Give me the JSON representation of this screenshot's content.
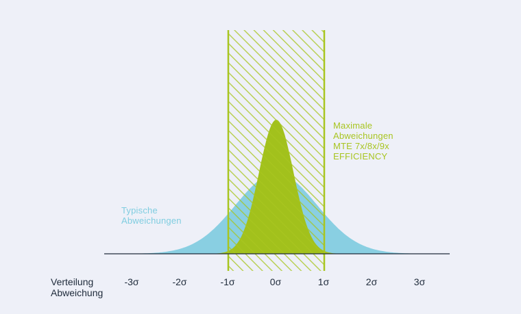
{
  "chart_data": {
    "type": "area",
    "xlabel": [
      "Verteilung",
      "Abweichung"
    ],
    "tick_labels": [
      "-3σ",
      "-2σ",
      "-1σ",
      "0σ",
      "1σ",
      "2σ",
      "3σ"
    ],
    "ticks": [
      -3,
      -2,
      -1,
      0,
      1,
      2,
      3
    ],
    "xlim": [
      -3.5,
      3.5
    ],
    "series": [
      {
        "name": "Typische Abweichungen",
        "name_lines": [
          "Typische",
          "Abweichungen"
        ],
        "color": "#89cfe2",
        "sigma": 0.85,
        "peak": 0.6
      },
      {
        "name": "Maximale Abweichungen MTE 7x/8x/9x EFFICIENCY",
        "name_lines": [
          "Maximale",
          "Abweichungen",
          "MTE 7x/8x/9x",
          "EFFICIENCY"
        ],
        "color": "#a2c11c",
        "sigma": 0.36,
        "peak": 1.0
      }
    ],
    "band": {
      "from": -1,
      "to": 1,
      "color": "#a8c520",
      "style": "hatched"
    },
    "baseline_color": "#1e2a3a"
  }
}
